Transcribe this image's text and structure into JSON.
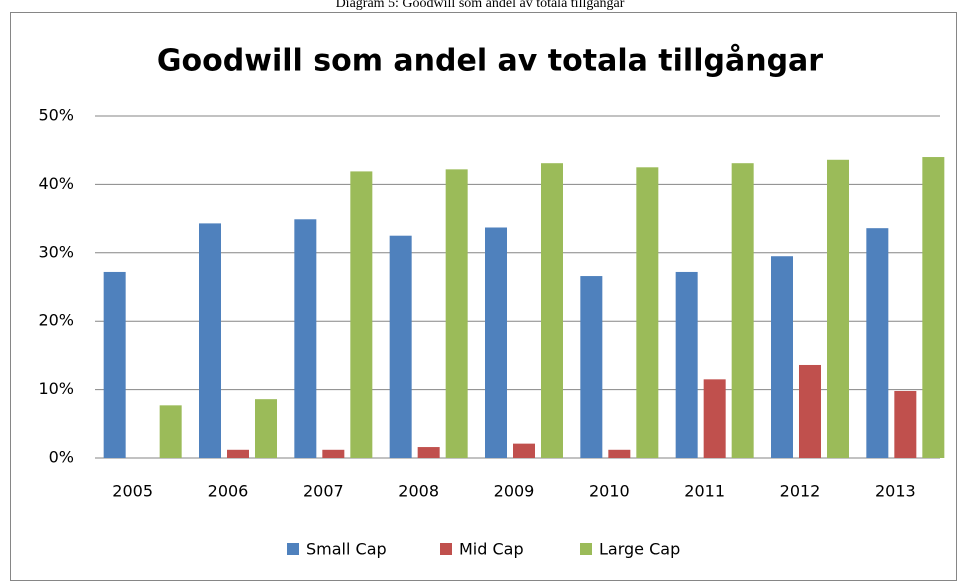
{
  "caption": "Diagram 5: Goodwill som andel av totala tillgångar",
  "chart_data": {
    "type": "bar",
    "title": "Goodwill som andel av totala tillgångar",
    "categories": [
      "2005",
      "2006",
      "2007",
      "2008",
      "2009",
      "2010",
      "2011",
      "2012",
      "2013"
    ],
    "series": [
      {
        "name": "Small Cap",
        "color": "#4f81bd",
        "values": [
          27.2,
          34.3,
          34.9,
          32.5,
          33.7,
          26.6,
          27.2,
          29.5,
          33.6
        ]
      },
      {
        "name": "Mid Cap",
        "color": "#c0504d",
        "values": [
          0,
          1.2,
          1.2,
          1.6,
          2.1,
          1.2,
          11.5,
          13.6,
          9.8
        ]
      },
      {
        "name": "Large Cap",
        "color": "#9bbb59",
        "values": [
          7.7,
          8.6,
          41.9,
          42.2,
          43.1,
          42.5,
          43.1,
          43.6,
          44.0
        ]
      }
    ],
    "ylim": [
      0,
      50
    ],
    "yticks": [
      {
        "value": 0,
        "label": "0%"
      },
      {
        "value": 10,
        "label": "10%"
      },
      {
        "value": 20,
        "label": "20%"
      },
      {
        "value": 30,
        "label": "30%"
      },
      {
        "value": 40,
        "label": "40%"
      },
      {
        "value": 50,
        "label": "50%"
      }
    ],
    "grid": true,
    "legend": "bottom"
  }
}
